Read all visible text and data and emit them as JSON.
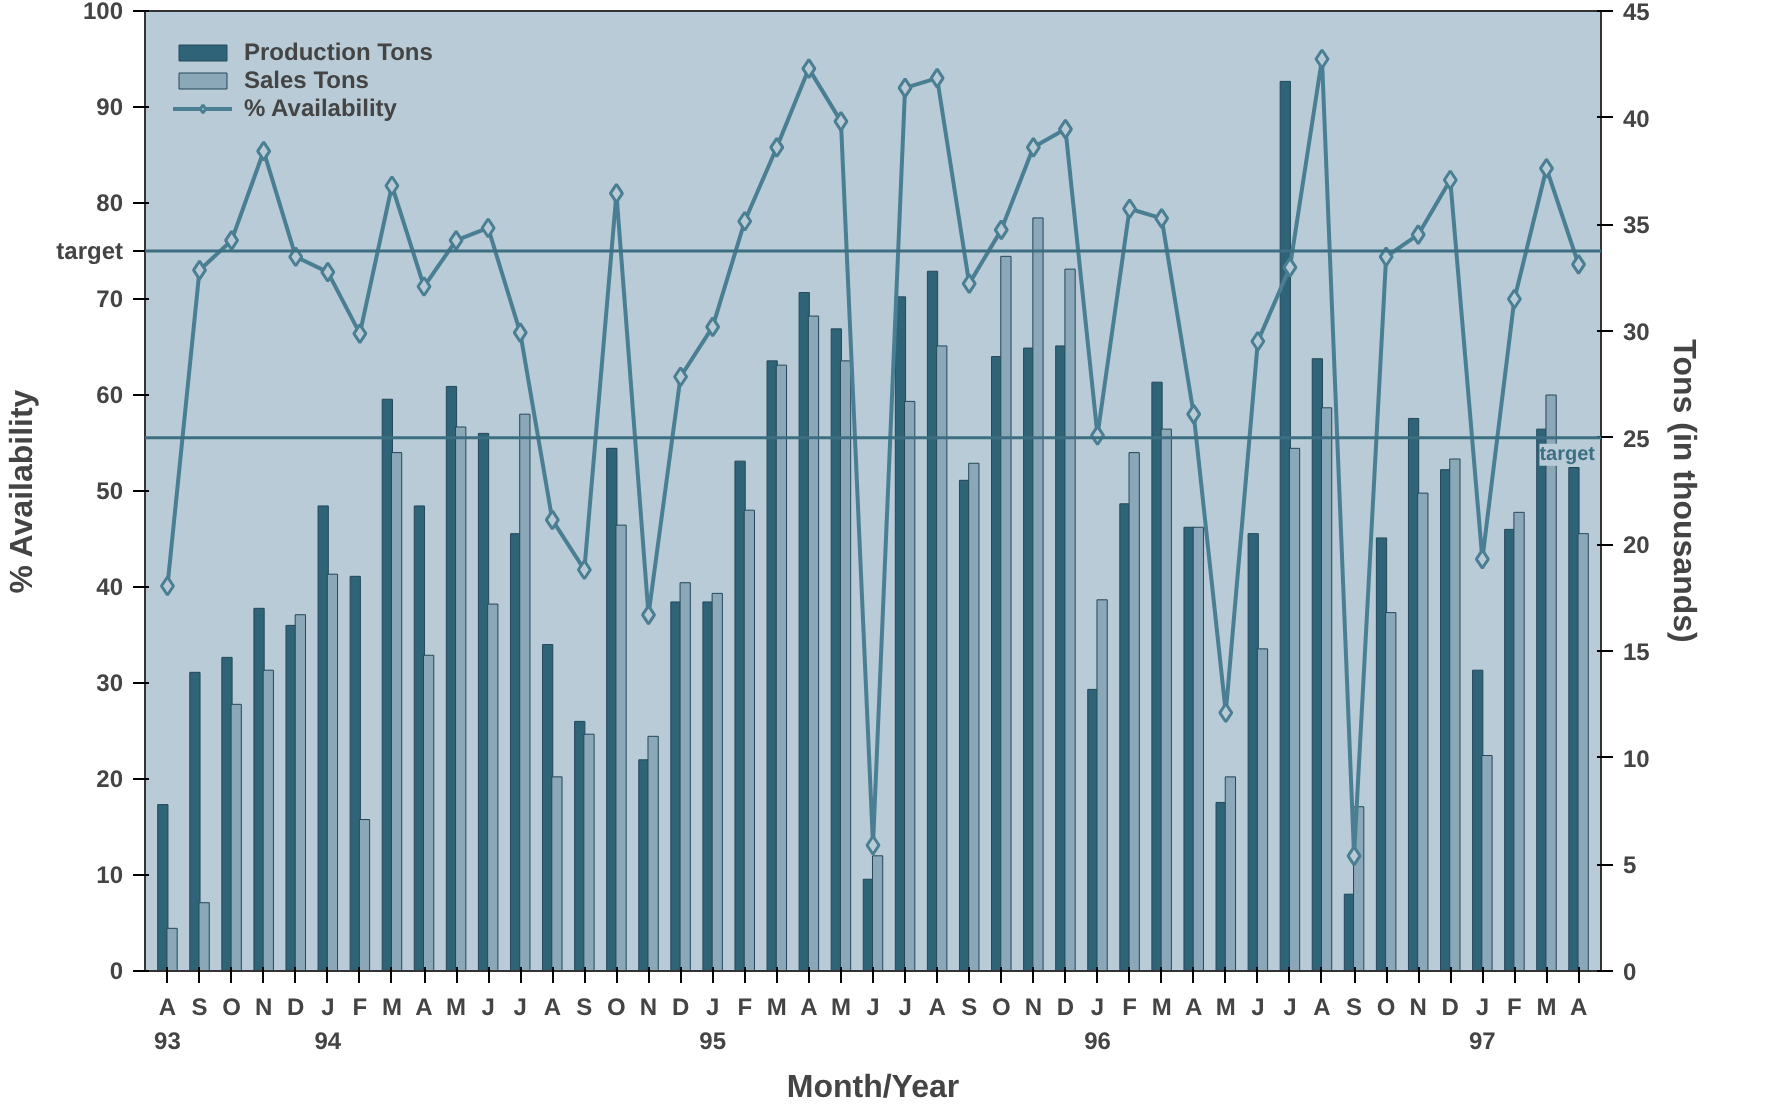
{
  "chart_data": {
    "type": "bar",
    "xlabel": "Month/Year",
    "ylabel": "% Availability",
    "y2label": "Tons (in thousands)",
    "categories": [
      "A\n93",
      "S",
      "O",
      "N",
      "D",
      "J\n94",
      "F",
      "M",
      "A",
      "M",
      "J",
      "J",
      "A",
      "S",
      "O",
      "N",
      "D",
      "J\n95",
      "F",
      "M",
      "A",
      "M",
      "J",
      "J",
      "A",
      "S",
      "O",
      "N",
      "D",
      "J\n96",
      "F",
      "M",
      "A",
      "M",
      "J",
      "J",
      "A",
      "S",
      "O",
      "N",
      "D",
      "J\n97",
      "F",
      "M",
      "A"
    ],
    "series": [
      {
        "name": "Production Tons",
        "axis": "y2",
        "color": "#2f6478",
        "values": [
          7.8,
          14.0,
          14.7,
          17.0,
          16.2,
          21.8,
          18.5,
          26.8,
          21.8,
          27.4,
          25.2,
          20.5,
          15.3,
          11.7,
          24.5,
          9.9,
          17.3,
          17.3,
          23.9,
          28.6,
          31.8,
          30.1,
          4.3,
          31.6,
          32.8,
          23.0,
          28.8,
          29.2,
          29.3,
          13.2,
          21.9,
          27.6,
          20.8,
          7.9,
          20.5,
          41.7,
          28.7,
          3.6,
          20.3,
          25.9,
          23.5,
          14.1,
          20.7,
          25.4,
          23.6
        ]
      },
      {
        "name": "Sales Tons",
        "axis": "y2",
        "color": "#8aa8b8",
        "values": [
          2.0,
          3.2,
          12.5,
          14.1,
          16.7,
          18.6,
          7.1,
          24.3,
          14.8,
          25.5,
          17.2,
          26.1,
          9.1,
          11.1,
          20.9,
          11.0,
          18.2,
          17.7,
          21.6,
          28.4,
          30.7,
          28.6,
          5.4,
          26.7,
          29.3,
          23.8,
          33.5,
          35.3,
          32.9,
          17.4,
          24.3,
          25.4,
          20.8,
          9.1,
          15.1,
          24.5,
          26.4,
          7.7,
          16.8,
          22.4,
          24.0,
          10.1,
          21.5,
          27.0,
          20.5
        ]
      },
      {
        "name": "% Availability",
        "type": "line",
        "color": "#4a7f93",
        "marker": "diamond",
        "values": [
          40.1,
          73.0,
          76.1,
          85.4,
          74.4,
          72.8,
          66.4,
          81.8,
          71.3,
          76.1,
          77.4,
          66.5,
          47.0,
          41.8,
          81.0,
          37.1,
          61.9,
          67.1,
          78.1,
          85.8,
          94,
          88.5,
          13.1,
          92,
          93,
          71.6,
          77.2,
          85.8,
          87.7,
          55.8,
          79.4,
          78.4,
          58.0,
          26.9,
          65.6,
          73.3,
          95,
          12.0,
          74.4,
          76.7,
          82.4,
          42.9,
          70.0,
          83.6,
          73.6
        ]
      }
    ],
    "ylim": [
      0,
      100
    ],
    "yticks": [
      0,
      10,
      20,
      30,
      40,
      50,
      60,
      70,
      80,
      90,
      100
    ],
    "y2lim": [
      0,
      45
    ],
    "y2ticks": [
      0,
      5,
      10,
      15,
      20,
      25,
      30,
      35,
      40,
      45
    ],
    "ref_lines": [
      {
        "axis": "y",
        "value": 75,
        "label": "target",
        "color": "#3d6f82"
      },
      {
        "axis": "y2",
        "value": 25,
        "label": "target",
        "color": "#3d6f82"
      }
    ],
    "grid": false,
    "legend": "top left"
  }
}
